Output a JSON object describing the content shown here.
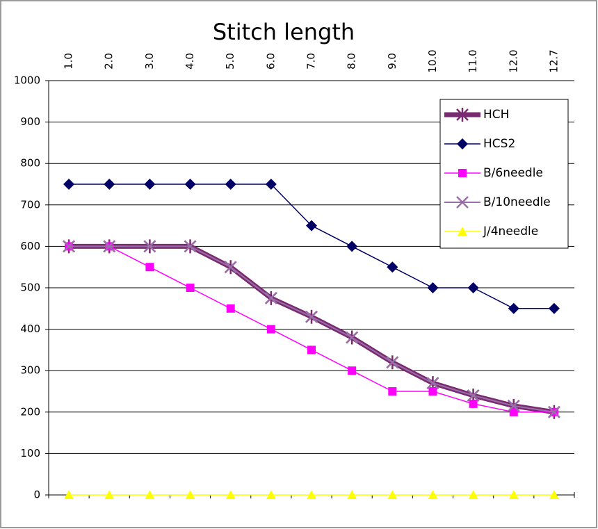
{
  "chart_data": {
    "type": "line",
    "title": "Stitch length",
    "categories": [
      "1.0",
      "2.0",
      "3.0",
      "4.0",
      "5.0",
      "6.0",
      "7.0",
      "8.0",
      "9.0",
      "10.0",
      "11.0",
      "12.0",
      "12.7"
    ],
    "series": [
      {
        "name": "HCH",
        "color": "#7a2a70",
        "marker": "asterisk",
        "line_width": 7,
        "values": [
          600,
          600,
          600,
          600,
          550,
          475,
          430,
          380,
          320,
          270,
          240,
          215,
          200
        ]
      },
      {
        "name": "HCS2",
        "color": "#000066",
        "marker": "diamond",
        "line_width": 1.5,
        "values": [
          750,
          750,
          750,
          750,
          750,
          750,
          650,
          600,
          550,
          500,
          500,
          450,
          450
        ]
      },
      {
        "name": "B/6needle",
        "color": "#ff00ff",
        "marker": "square",
        "line_width": 1.5,
        "values": [
          600,
          600,
          550,
          500,
          450,
          400,
          350,
          300,
          250,
          250,
          220,
          200,
          200
        ]
      },
      {
        "name": "B/10needle",
        "color": "#9a6fa8",
        "marker": "x",
        "line_width": 2,
        "values": [
          600,
          600,
          600,
          600,
          550,
          475,
          430,
          380,
          320,
          270,
          240,
          215,
          200
        ]
      },
      {
        "name": "J/4needle",
        "color": "#ffff00",
        "marker": "triangle",
        "line_width": 1.5,
        "values": [
          0,
          0,
          0,
          0,
          0,
          0,
          0,
          0,
          0,
          0,
          0,
          0,
          0
        ]
      }
    ],
    "ylim": [
      0,
      1000
    ],
    "yticks": [
      0,
      100,
      200,
      300,
      400,
      500,
      600,
      700,
      800,
      900,
      1000
    ],
    "grid": true,
    "legend": "upper right"
  }
}
